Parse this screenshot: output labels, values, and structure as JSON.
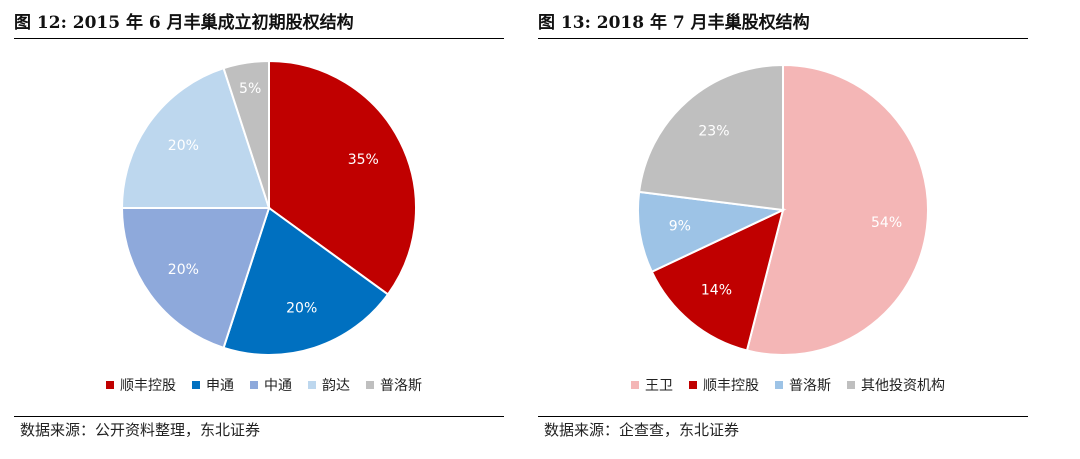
{
  "chart_data": [
    {
      "type": "pie",
      "title": "图 12: 2015 年 6 月丰巢成立初期股权结构",
      "labels": [
        "顺丰控股",
        "申通",
        "中通",
        "韵达",
        "普洛斯"
      ],
      "values": [
        35,
        20,
        20,
        20,
        5
      ],
      "value_labels": [
        "35%",
        "20%",
        "20%",
        "20%",
        "5%"
      ],
      "colors": [
        "#C00000",
        "#0070C0",
        "#8EA9DB",
        "#BDD7EE",
        "#BFBFBF"
      ],
      "label_colors": [
        "#ffffff",
        "#ffffff",
        "#ffffff",
        "#ffffff",
        "#ffffff"
      ],
      "legend_position": "bottom",
      "source": "数据来源：公开资料整理，东北证券"
    },
    {
      "type": "pie",
      "title": "图 13: 2018 年 7 月丰巢股权结构",
      "labels": [
        "王卫",
        "顺丰控股",
        "普洛斯",
        "其他投资机构"
      ],
      "values": [
        54,
        14,
        9,
        23
      ],
      "value_labels": [
        "54%",
        "14%",
        "9%",
        "23%"
      ],
      "colors": [
        "#F4B6B6",
        "#C00000",
        "#9DC3E6",
        "#BFBFBF"
      ],
      "label_colors": [
        "#ffffff",
        "#ffffff",
        "#ffffff",
        "#ffffff"
      ],
      "legend_position": "bottom",
      "source": "数据来源：企查查，东北证券"
    }
  ]
}
